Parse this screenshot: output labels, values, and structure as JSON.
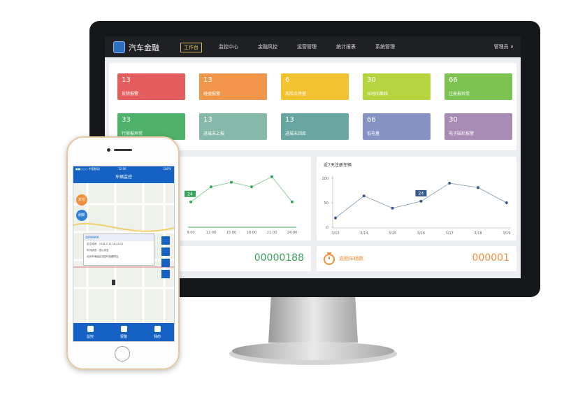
{
  "nav": {
    "brand": "汽车金融",
    "tabs": [
      "工作台",
      "监控中心",
      "金融风控",
      "运营管理",
      "统计报表",
      "系统管理"
    ],
    "user": "管理员 ∨"
  },
  "tiles": [
    {
      "value": 13,
      "label": "拆除报警",
      "color": "#e35d5d"
    },
    {
      "value": 13,
      "label": "碰撞报警",
      "color": "#f0954a"
    },
    {
      "value": 6,
      "label": "风险点停留",
      "color": "#f2c230"
    },
    {
      "value": 30,
      "label": "长时间离线",
      "color": "#b6d43e"
    },
    {
      "value": 66,
      "label": "注册报异常",
      "color": "#7cc351"
    },
    {
      "value": 33,
      "label": "行驶报异常",
      "color": "#4fb26a"
    },
    {
      "value": 13,
      "label": "进城未上报",
      "color": "#86b9aa"
    },
    {
      "value": 13,
      "label": "进城未回库",
      "color": "#69a6a1"
    },
    {
      "value": 66,
      "label": "低电量",
      "color": "#8592c3"
    },
    {
      "value": 30,
      "label": "电子围栏报警",
      "color": "#a98cb6"
    }
  ],
  "hourly_chart": {
    "type": "line",
    "categories": [
      "9:00",
      "12:00",
      "15:00",
      "18:00",
      "21:00",
      "24:00"
    ],
    "values": [
      44,
      71,
      79,
      71,
      89,
      44
    ],
    "ylim": [
      0,
      100
    ],
    "annotation": "24",
    "color": "#36a45a"
  },
  "weekly_chart": {
    "type": "line",
    "title": "近7天注册车辆",
    "categories": [
      "3/13",
      "3/14",
      "3/15",
      "3/16",
      "3/17",
      "3/18",
      "3/19"
    ],
    "values": [
      19,
      64,
      39,
      53,
      90,
      81,
      50
    ],
    "ylim": [
      0,
      100
    ],
    "yticks": [
      0,
      50,
      100
    ],
    "annotation": "24",
    "color": "#3b5a8c"
  },
  "counters": [
    {
      "value": "00000188"
    },
    {
      "label": "逾期车辆数",
      "value": "000001"
    }
  ],
  "phone": {
    "status": "●●○○○ 中国移动",
    "time": "12:00",
    "battery": "100%",
    "title": "车辆监控",
    "buttons": [
      "定位",
      "刷新"
    ],
    "popup": {
      "plate": "京P99999",
      "lines": [
        "定位时间：2018-3-12 16:20:22",
        "车况状态：熄火状态",
        "北京市海淀区北四环西路附近"
      ]
    },
    "tabs": [
      "监控",
      "报警",
      "我的"
    ]
  }
}
